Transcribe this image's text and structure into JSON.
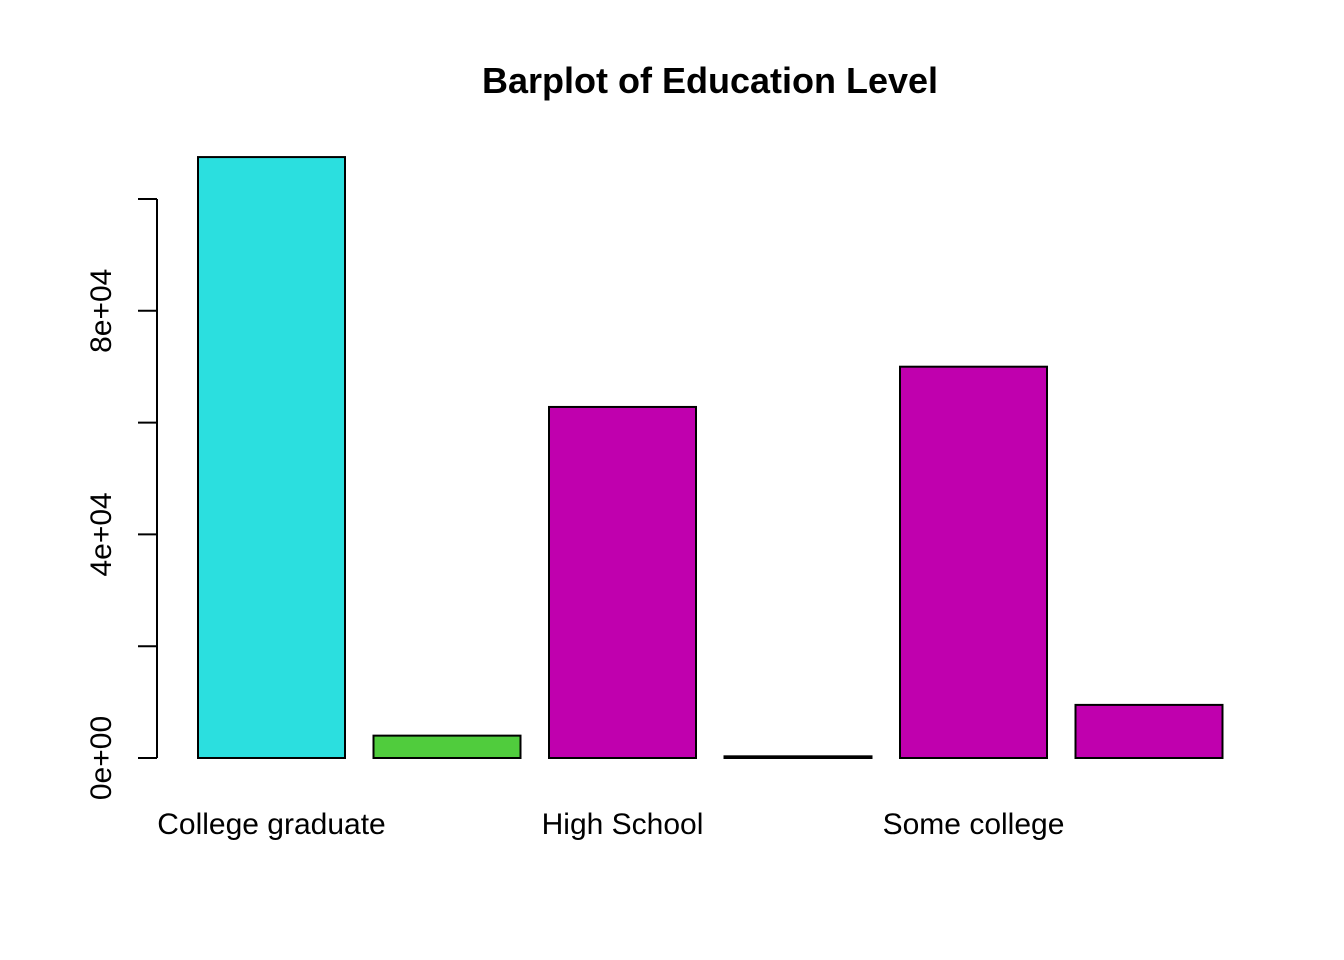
{
  "chart_data": {
    "type": "bar",
    "title": "Barplot of Education Level",
    "xlabel": "",
    "ylabel": "",
    "categories": [
      "College graduate",
      "",
      "High School",
      "",
      "Some college",
      ""
    ],
    "values": [
      107500,
      4000,
      62800,
      300,
      70000,
      9500
    ],
    "colors": [
      "#2BDFDF",
      "#50CC3D",
      "#C000AE",
      "#000000",
      "#C000AE",
      "#C000AE"
    ],
    "ylim": [
      0,
      107500
    ],
    "y_ticks": [
      0,
      20000,
      40000,
      60000,
      80000,
      100000
    ],
    "y_tick_labels": [
      "0e+00",
      "",
      "4e+04",
      "",
      "8e+04",
      ""
    ],
    "grid": false,
    "legend": "none"
  }
}
